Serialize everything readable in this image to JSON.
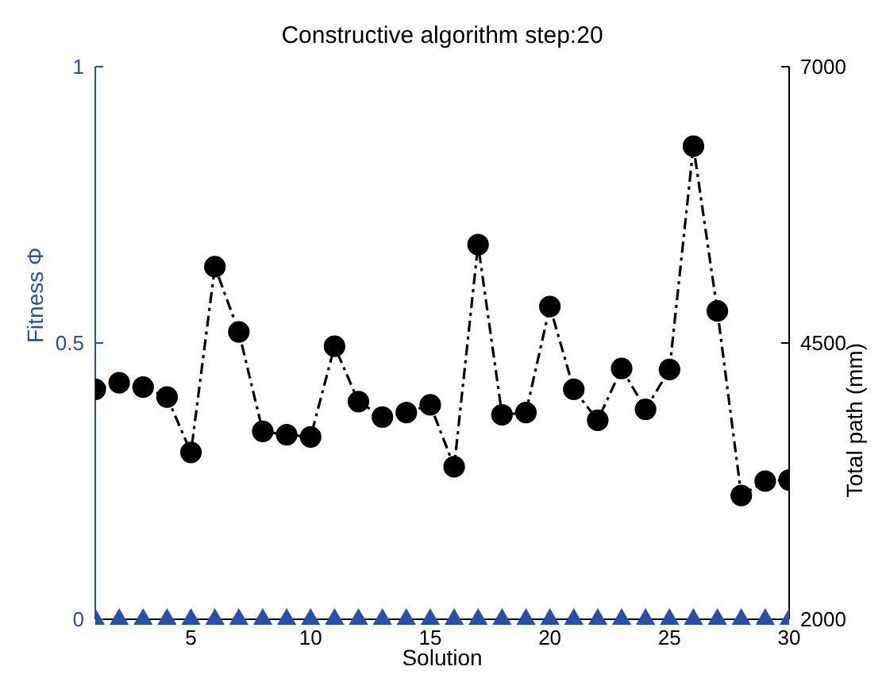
{
  "chart_data": {
    "type": "line",
    "title": "Constructive algorithm step:20",
    "xlabel": "Solution",
    "ylabel": "Fitness Φ",
    "y2label": "Total path (mm)",
    "x": [
      1,
      2,
      3,
      4,
      5,
      6,
      7,
      8,
      9,
      10,
      11,
      12,
      13,
      14,
      15,
      16,
      17,
      18,
      19,
      20,
      21,
      22,
      23,
      24,
      25,
      26,
      27,
      28,
      29,
      30
    ],
    "xlim": [
      1,
      30
    ],
    "xticks": [
      5,
      10,
      15,
      20,
      25,
      30
    ],
    "ylim": [
      0,
      1
    ],
    "yticks": [
      0,
      0.5,
      1
    ],
    "y2lim": [
      2000,
      7000
    ],
    "y2ticks": [
      2000,
      4500,
      7000
    ],
    "series": [
      {
        "type": "scatter",
        "color": "#2b4fa8",
        "marker": "triangle",
        "values": [
          0,
          0,
          0,
          0,
          0,
          0,
          0,
          0,
          0,
          0,
          0,
          0,
          0,
          0,
          0,
          0,
          0,
          0,
          0,
          0,
          0,
          0,
          0,
          0,
          0,
          0,
          0,
          0,
          0,
          0
        ]
      },
      {
        "type": "line",
        "axis": "y2",
        "color": "#000000",
        "marker": "circle",
        "line_style": "dashed",
        "values": [
          4080,
          4140,
          4100,
          4010,
          3510,
          5190,
          4600,
          3700,
          3670,
          3650,
          4470,
          3970,
          3830,
          3870,
          3940,
          3380,
          5390,
          3850,
          3870,
          4830,
          4080,
          3800,
          4270,
          3900,
          4260,
          6280,
          4790,
          3120,
          3250,
          3260
        ]
      }
    ],
    "grid": false,
    "legend": false
  }
}
